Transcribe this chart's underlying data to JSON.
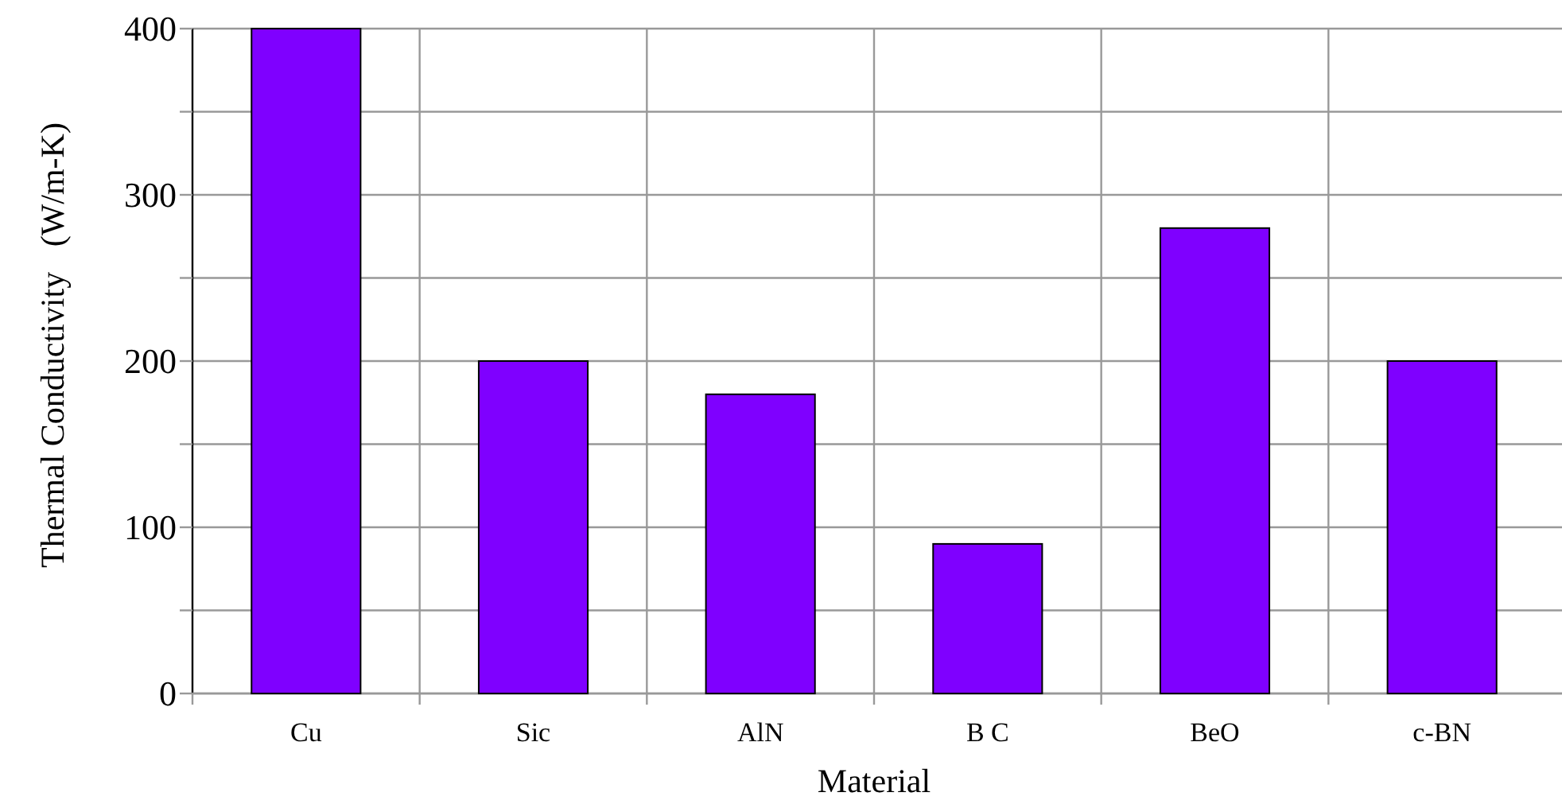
{
  "chart_data": {
    "type": "bar",
    "xlabel": "Material",
    "ylabel": "Thermal Conductivity   (W/m-K)",
    "categories": [
      "Cu",
      "Sic",
      "AlN",
      "B  C",
      "BeO",
      "c-BN"
    ],
    "values": [
      400,
      200,
      180,
      90,
      280,
      200
    ],
    "color": "#7f00ff",
    "ylim": [
      0,
      400
    ],
    "yticks": [
      0,
      {
        "value": 50,
        "label": null
      },
      100,
      {
        "value": 150,
        "label": null
      },
      200,
      {
        "value": 250,
        "label": null
      },
      300,
      {
        "value": 350,
        "label": null
      },
      400
    ],
    "grid": true
  }
}
